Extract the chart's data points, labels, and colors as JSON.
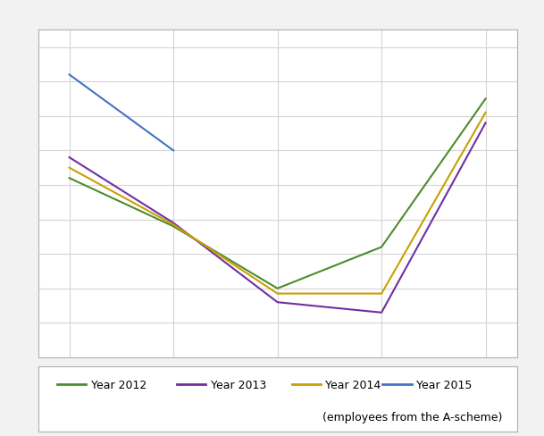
{
  "series": [
    {
      "label": "Year 2012",
      "x": [
        1,
        2,
        3,
        4,
        5
      ],
      "y": [
        6.2,
        4.8,
        3.0,
        4.2,
        8.5
      ],
      "color": "#4d8c2e",
      "linewidth": 1.5
    },
    {
      "label": "Year 2013",
      "x": [
        1,
        2,
        3,
        4,
        5
      ],
      "y": [
        6.8,
        4.9,
        2.6,
        2.3,
        7.8
      ],
      "color": "#7030a0",
      "linewidth": 1.5
    },
    {
      "label": "Year 2014",
      "x": [
        1,
        2,
        3,
        4,
        5
      ],
      "y": [
        6.5,
        4.85,
        2.85,
        2.85,
        8.1
      ],
      "color": "#c9a000",
      "linewidth": 1.5
    },
    {
      "label": "Year 2015",
      "x": [
        1,
        2
      ],
      "y": [
        9.2,
        7.0
      ],
      "color": "#4472c4",
      "linewidth": 1.5
    }
  ],
  "xlim": [
    0.7,
    5.3
  ],
  "ylim": [
    1.0,
    10.5
  ],
  "grid_color": "#d4d4d4",
  "background_color": "#f2f2f2",
  "plot_background": "#ffffff",
  "legend_labels": [
    "Year 2012",
    "Year 2013",
    "Year 2014",
    "Year 2015"
  ],
  "legend_colors": [
    "#4d8c2e",
    "#7030a0",
    "#c9a000",
    "#4472c4"
  ],
  "legend_extra": "(employees from the A-scheme)",
  "spine_color": "#b0b0b0"
}
